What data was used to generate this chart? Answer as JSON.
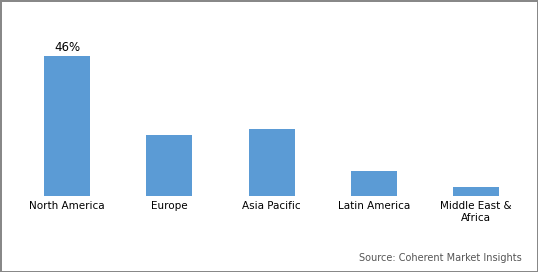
{
  "categories": [
    "North America",
    "Europe",
    "Asia Pacific",
    "Latin America",
    "Middle East &\nAfrica"
  ],
  "values": [
    46,
    20,
    22,
    8,
    3
  ],
  "bar_color": "#5b9bd5",
  "annotation_label": "46%",
  "annotation_bar_index": 0,
  "source_text": "Source: Coherent Market Insights",
  "ylim": [
    0,
    58
  ],
  "background_color": "#ffffff",
  "tick_fontsize": 7.5,
  "annotation_fontsize": 8.5,
  "source_fontsize": 7,
  "bar_width": 0.45,
  "border_color": "#aaaaaa",
  "border_linewidth": 0.8
}
